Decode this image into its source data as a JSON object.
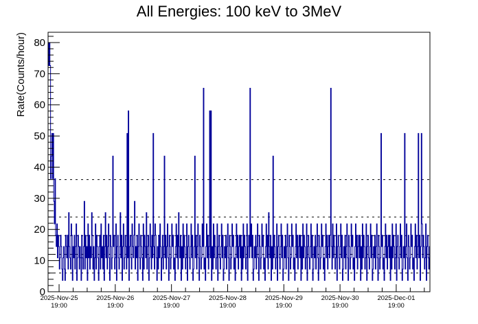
{
  "chart_data": {
    "type": "line",
    "style": "step-histogram",
    "title": "All Energies:  100 keV to 3MeV",
    "xlabel": "",
    "ylabel": "Rate(Counts/hour)",
    "ylim": [
      0,
      83.3
    ],
    "yticks": [
      0,
      10,
      20,
      30,
      40,
      50,
      60,
      70,
      80
    ],
    "xrange_days": [
      -0.196,
      6.6
    ],
    "xticks": [
      {
        "day": 0,
        "date": "2025-Nov-25",
        "time": "19:00"
      },
      {
        "day": 1,
        "date": "2025-Nov-26",
        "time": "19:00"
      },
      {
        "day": 2,
        "date": "2025-Nov-27",
        "time": "19:00"
      },
      {
        "day": 3,
        "date": "2025-Nov-28",
        "time": "19:00"
      },
      {
        "day": 4,
        "date": "2025-Nov-29",
        "time": "19:00"
      },
      {
        "day": 5,
        "date": "2025-Nov-30",
        "time": "19:00"
      },
      {
        "day": 6,
        "date": "2025-Dec-01",
        "time": "19:00"
      }
    ],
    "rate_per_count": 3.63,
    "reference_lines": [
      6,
      12,
      18,
      24,
      36
    ],
    "series": [
      {
        "name": "rate",
        "color": "#000099",
        "counts": [
          22,
          20,
          22,
          20,
          10,
          12,
          14,
          10,
          14,
          8,
          6,
          10,
          5,
          4,
          6,
          3,
          5,
          4,
          2,
          3,
          5,
          4,
          2,
          1,
          3,
          4,
          2,
          1,
          5,
          4,
          3,
          5,
          2,
          7,
          4,
          3,
          2,
          6,
          5,
          1,
          4,
          3,
          5,
          2,
          4,
          6,
          1,
          3,
          5,
          4,
          2,
          4,
          3,
          1,
          5,
          3,
          2,
          4,
          8,
          2,
          5,
          3,
          4,
          1,
          6,
          3,
          5,
          2,
          4,
          3,
          7,
          5,
          2,
          4,
          1,
          3,
          6,
          2,
          5,
          4,
          3,
          1,
          4,
          5,
          2,
          6,
          3,
          4,
          2,
          5,
          1,
          4,
          7,
          3,
          5,
          2,
          4,
          6,
          3,
          1,
          5,
          4,
          2,
          3,
          12,
          4,
          5,
          2,
          3,
          6,
          1,
          4,
          5,
          3,
          2,
          4,
          7,
          3,
          5,
          1,
          4,
          6,
          2,
          3,
          5,
          4,
          2,
          14,
          3,
          16,
          1,
          4,
          5,
          3,
          2,
          6,
          4,
          3,
          5,
          8,
          2,
          4,
          3,
          5,
          1,
          4,
          6,
          3,
          2,
          5,
          4,
          3,
          1,
          6,
          2,
          5,
          4,
          3,
          7,
          2,
          4,
          5,
          1,
          3,
          6,
          4,
          2,
          5,
          3,
          14,
          4,
          2,
          6,
          5,
          3,
          1,
          4,
          2,
          5,
          3,
          6,
          4,
          1,
          3,
          5,
          2,
          4,
          12,
          3,
          5,
          2,
          4,
          6,
          3,
          1,
          5,
          4,
          2,
          3,
          6,
          4,
          5,
          2,
          3,
          1,
          4,
          6,
          3,
          5,
          2,
          7,
          4,
          3,
          5,
          1,
          4,
          2,
          6,
          3,
          5,
          4,
          2,
          3,
          6,
          1,
          4,
          5,
          3,
          2,
          4,
          6,
          3,
          5,
          1,
          2,
          4,
          12,
          3,
          5,
          2,
          4,
          6,
          3,
          1,
          5,
          4,
          2,
          3,
          6,
          4,
          18,
          2,
          3,
          1,
          4,
          6,
          3,
          5,
          2,
          4,
          16,
          3,
          16,
          1,
          4,
          2,
          6,
          3,
          5,
          4,
          2,
          3,
          6,
          1,
          4,
          5,
          3,
          2,
          4,
          6,
          3,
          5,
          1,
          2,
          4,
          3,
          5,
          2,
          4,
          6,
          3,
          1,
          5,
          4,
          2,
          3,
          6,
          4,
          5,
          2,
          3,
          1,
          4,
          6,
          3,
          5,
          2,
          4,
          5,
          3,
          5,
          1,
          4,
          2,
          6,
          3,
          5,
          4,
          2,
          3,
          6,
          1,
          4,
          5,
          3,
          18,
          4,
          6,
          3,
          5,
          1,
          2,
          4,
          3,
          5,
          2,
          4,
          6,
          3,
          1,
          5,
          4,
          2,
          3,
          6,
          4,
          5,
          2,
          3,
          1,
          4,
          6,
          3,
          5,
          2,
          7,
          4,
          3,
          5,
          1,
          4,
          2,
          12,
          3,
          5,
          4,
          2,
          3,
          6,
          1,
          4,
          5,
          3,
          2,
          4,
          6,
          3,
          5,
          1,
          2,
          4,
          3,
          5,
          2,
          4,
          6,
          3,
          1,
          5,
          4,
          2,
          3,
          6,
          4,
          5,
          2,
          3,
          1,
          4,
          6,
          3,
          5,
          2,
          4,
          5,
          3,
          5,
          1,
          4,
          2,
          6,
          3,
          5,
          4,
          2,
          3,
          6,
          1,
          4,
          5,
          3,
          2,
          4,
          6,
          3,
          5,
          1,
          2,
          4,
          3,
          5,
          2,
          4,
          6,
          3,
          1,
          5,
          4,
          2,
          3,
          6,
          4,
          5,
          2,
          3,
          1,
          4,
          6,
          3,
          5,
          2,
          4,
          5,
          3,
          5,
          18,
          4,
          2,
          6,
          3,
          5,
          4,
          2,
          3,
          6,
          1,
          4,
          5,
          3,
          2,
          4,
          6,
          3,
          5,
          1,
          2,
          4,
          3,
          5,
          2,
          4,
          6,
          3,
          1,
          5,
          4,
          2,
          3,
          6,
          4,
          5,
          2,
          3,
          1,
          4,
          6,
          3,
          5,
          2,
          4,
          5,
          3,
          5,
          1,
          4,
          2,
          6,
          3,
          5,
          4,
          2,
          3,
          6,
          1,
          4,
          5,
          3,
          2,
          4,
          6,
          3,
          5,
          1,
          2,
          4,
          3,
          5,
          2,
          4,
          6,
          3,
          1,
          5,
          4,
          2,
          3,
          14,
          4,
          5,
          2,
          3,
          1,
          4,
          6,
          3,
          5,
          2,
          4,
          5,
          3,
          5,
          1,
          4,
          2,
          6,
          3,
          5,
          4,
          2,
          3,
          6,
          1,
          4,
          5,
          3,
          2,
          4,
          6,
          3,
          5,
          1,
          2,
          4,
          3,
          14,
          2,
          4,
          6,
          3,
          1,
          5,
          4,
          2,
          3,
          6,
          4,
          5,
          2,
          3,
          1,
          4,
          6,
          3,
          5,
          2,
          4,
          14,
          3,
          5,
          1,
          4,
          14,
          6,
          3,
          5,
          4,
          2,
          3,
          6,
          1,
          4,
          5,
          3,
          2,
          4
        ]
      }
    ]
  }
}
